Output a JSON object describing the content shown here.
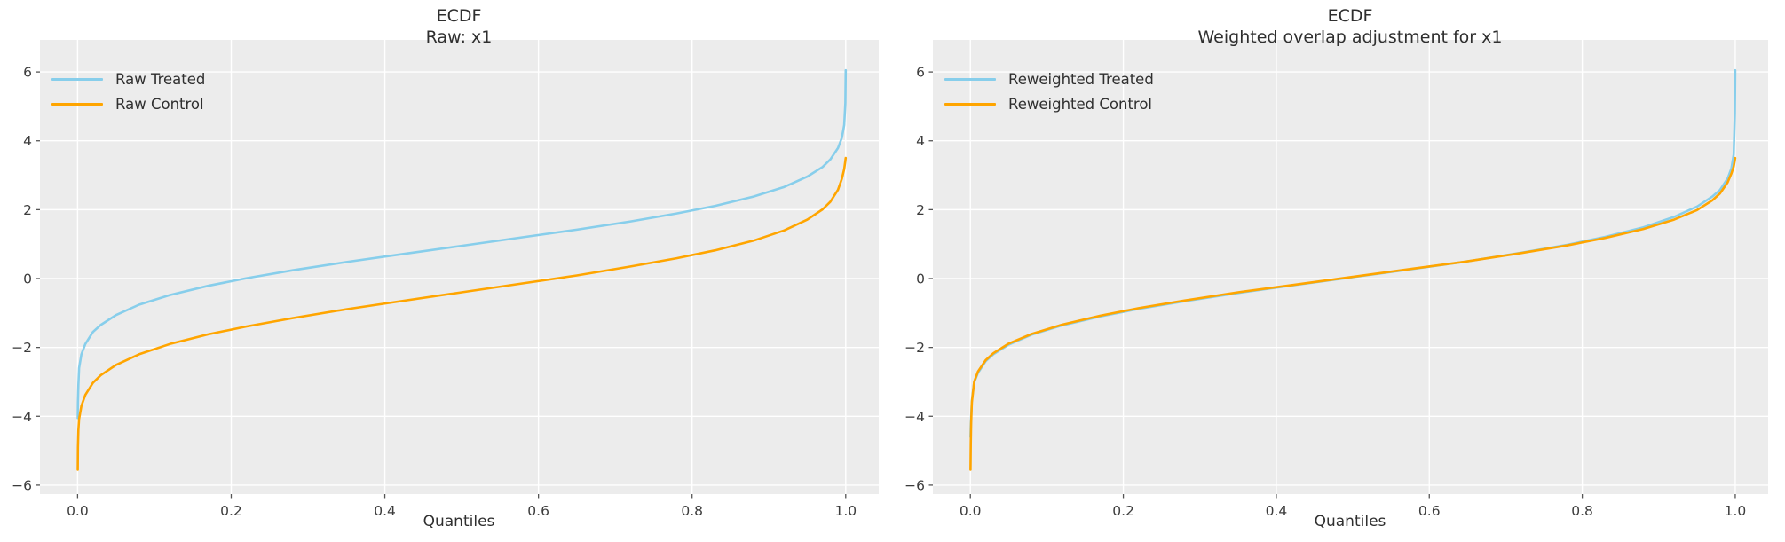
{
  "figure": {
    "background": "#ffffff",
    "axes_background": "#ececec",
    "grid_color": "#ffffff",
    "tick_mark_color": "#555555",
    "tick_label_color": "#3c3c3c"
  },
  "chart_data": [
    {
      "type": "line",
      "title": "ECDF",
      "subtitle": "Raw: x1",
      "xlabel": "Quantiles",
      "ylabel": "",
      "xlim": [
        -0.049,
        1.043
      ],
      "ylim": [
        -6.26,
        6.93
      ],
      "xticks": [
        0.0,
        0.2,
        0.4,
        0.6,
        0.8,
        1.0
      ],
      "yticks": [
        -6,
        -4,
        -2,
        0,
        2,
        4,
        6
      ],
      "grid": true,
      "legend_position": "upper left",
      "series": [
        {
          "name": "Raw Treated",
          "color": "#87ceeb",
          "points": [
            [
              0.0002,
              -4.05
            ],
            [
              0.0005,
              -3.6
            ],
            [
              0.001,
              -3.1
            ],
            [
              0.002,
              -2.6
            ],
            [
              0.005,
              -2.2
            ],
            [
              0.01,
              -1.9
            ],
            [
              0.02,
              -1.55
            ],
            [
              0.03,
              -1.35
            ],
            [
              0.05,
              -1.06
            ],
            [
              0.08,
              -0.76
            ],
            [
              0.12,
              -0.48
            ],
            [
              0.17,
              -0.21
            ],
            [
              0.22,
              0.01
            ],
            [
              0.28,
              0.24
            ],
            [
              0.35,
              0.48
            ],
            [
              0.42,
              0.7
            ],
            [
              0.5,
              0.95
            ],
            [
              0.58,
              1.2
            ],
            [
              0.65,
              1.42
            ],
            [
              0.72,
              1.66
            ],
            [
              0.78,
              1.89
            ],
            [
              0.83,
              2.11
            ],
            [
              0.88,
              2.38
            ],
            [
              0.92,
              2.66
            ],
            [
              0.95,
              2.96
            ],
            [
              0.97,
              3.24
            ],
            [
              0.98,
              3.46
            ],
            [
              0.99,
              3.79
            ],
            [
              0.995,
              4.09
            ],
            [
              0.998,
              4.46
            ],
            [
              0.9995,
              5.1
            ],
            [
              1.0,
              6.05
            ]
          ]
        },
        {
          "name": "Raw Control",
          "color": "#ffa500",
          "points": [
            [
              0.0002,
              -5.55
            ],
            [
              0.0005,
              -4.9
            ],
            [
              0.001,
              -4.4
            ],
            [
              0.002,
              -4.08
            ],
            [
              0.005,
              -3.7
            ],
            [
              0.01,
              -3.38
            ],
            [
              0.02,
              -3.03
            ],
            [
              0.03,
              -2.81
            ],
            [
              0.05,
              -2.51
            ],
            [
              0.08,
              -2.2
            ],
            [
              0.12,
              -1.9
            ],
            [
              0.17,
              -1.62
            ],
            [
              0.22,
              -1.39
            ],
            [
              0.28,
              -1.15
            ],
            [
              0.35,
              -0.89
            ],
            [
              0.42,
              -0.66
            ],
            [
              0.5,
              -0.4
            ],
            [
              0.58,
              -0.14
            ],
            [
              0.65,
              0.09
            ],
            [
              0.72,
              0.35
            ],
            [
              0.78,
              0.59
            ],
            [
              0.83,
              0.82
            ],
            [
              0.88,
              1.1
            ],
            [
              0.92,
              1.4
            ],
            [
              0.95,
              1.71
            ],
            [
              0.97,
              2.01
            ],
            [
              0.98,
              2.23
            ],
            [
              0.99,
              2.58
            ],
            [
              0.995,
              2.9
            ],
            [
              0.998,
              3.18
            ],
            [
              1.0,
              3.5
            ]
          ]
        }
      ]
    },
    {
      "type": "line",
      "title": "ECDF",
      "subtitle": "Weighted overlap adjustment for x1",
      "xlabel": "Quantiles",
      "ylabel": "",
      "xlim": [
        -0.049,
        1.043
      ],
      "ylim": [
        -6.26,
        6.93
      ],
      "xticks": [
        0.0,
        0.2,
        0.4,
        0.6,
        0.8,
        1.0
      ],
      "yticks": [
        -6,
        -4,
        -2,
        0,
        2,
        4,
        6
      ],
      "grid": true,
      "legend_position": "upper left",
      "series": [
        {
          "name": "Reweighted Treated",
          "color": "#87ceeb",
          "points": [
            [
              0.0002,
              -4.6
            ],
            [
              0.0005,
              -4.3
            ],
            [
              0.001,
              -4.05
            ],
            [
              0.002,
              -3.55
            ],
            [
              0.005,
              -3.02
            ],
            [
              0.01,
              -2.74
            ],
            [
              0.02,
              -2.4
            ],
            [
              0.03,
              -2.2
            ],
            [
              0.05,
              -1.92
            ],
            [
              0.08,
              -1.63
            ],
            [
              0.12,
              -1.36
            ],
            [
              0.17,
              -1.1
            ],
            [
              0.22,
              -0.88
            ],
            [
              0.28,
              -0.66
            ],
            [
              0.35,
              -0.42
            ],
            [
              0.42,
              -0.2
            ],
            [
              0.5,
              0.04
            ],
            [
              0.58,
              0.28
            ],
            [
              0.65,
              0.5
            ],
            [
              0.72,
              0.75
            ],
            [
              0.78,
              0.98
            ],
            [
              0.83,
              1.21
            ],
            [
              0.88,
              1.49
            ],
            [
              0.92,
              1.79
            ],
            [
              0.95,
              2.09
            ],
            [
              0.97,
              2.38
            ],
            [
              0.98,
              2.57
            ],
            [
              0.99,
              2.9
            ],
            [
              0.995,
              3.2
            ],
            [
              0.998,
              3.6
            ],
            [
              0.9995,
              4.8
            ],
            [
              1.0,
              6.05
            ]
          ]
        },
        {
          "name": "Reweighted Control",
          "color": "#ffa500",
          "points": [
            [
              0.0002,
              -5.55
            ],
            [
              0.0005,
              -4.8
            ],
            [
              0.001,
              -4.2
            ],
            [
              0.002,
              -3.6
            ],
            [
              0.005,
              -3.0
            ],
            [
              0.01,
              -2.7
            ],
            [
              0.02,
              -2.37
            ],
            [
              0.03,
              -2.17
            ],
            [
              0.05,
              -1.89
            ],
            [
              0.08,
              -1.61
            ],
            [
              0.12,
              -1.34
            ],
            [
              0.17,
              -1.08
            ],
            [
              0.22,
              -0.86
            ],
            [
              0.28,
              -0.64
            ],
            [
              0.35,
              -0.4
            ],
            [
              0.42,
              -0.19
            ],
            [
              0.5,
              0.05
            ],
            [
              0.58,
              0.29
            ],
            [
              0.65,
              0.5
            ],
            [
              0.72,
              0.74
            ],
            [
              0.78,
              0.96
            ],
            [
              0.83,
              1.18
            ],
            [
              0.88,
              1.44
            ],
            [
              0.92,
              1.71
            ],
            [
              0.95,
              1.99
            ],
            [
              0.97,
              2.27
            ],
            [
              0.98,
              2.47
            ],
            [
              0.99,
              2.79
            ],
            [
              0.995,
              3.05
            ],
            [
              0.998,
              3.25
            ],
            [
              1.0,
              3.5
            ]
          ]
        }
      ]
    }
  ]
}
